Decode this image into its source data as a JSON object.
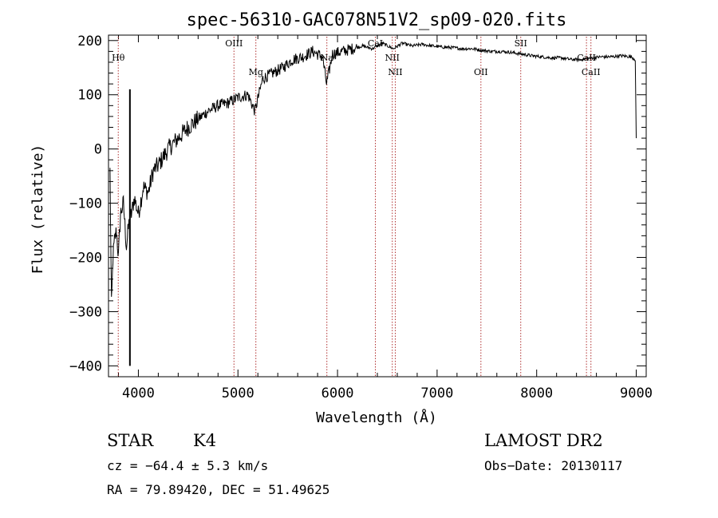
{
  "chart_data": {
    "type": "line",
    "title": "spec-56310-GAC078N51V2_sp09-020.fits",
    "xlabel": "Wavelength (Å)",
    "ylabel": "Flux (relative)",
    "xlim": [
      3700,
      9100
    ],
    "ylim": [
      -420,
      210
    ],
    "xticks": [
      4000,
      5000,
      6000,
      7000,
      8000,
      9000
    ],
    "xtick_labels": [
      "4000",
      "5000",
      "6000",
      "7000",
      "8000",
      "9000"
    ],
    "yticks": [
      -400,
      -300,
      -200,
      -100,
      0,
      100,
      200
    ],
    "ytick_labels": [
      "−400",
      "−300",
      "−200",
      "−100",
      "0",
      "100",
      "200"
    ],
    "grid": false,
    "line_color": "#000000",
    "marker_color": "#b03030",
    "series": [
      {
        "x": [
          3715,
          3730,
          3745,
          3760,
          3780,
          3800,
          3820,
          3850,
          3880,
          3910,
          3930,
          3960,
          4000,
          4050,
          4100,
          4150,
          4200,
          4300,
          4400,
          4500,
          4600,
          4700,
          4800,
          4900,
          5000,
          5100,
          5170,
          5250,
          5350,
          5450,
          5550,
          5650,
          5750,
          5850,
          5890,
          5950,
          6050,
          6150,
          6250,
          6350,
          6450,
          6560,
          6650,
          6750,
          6850,
          6950,
          7050,
          7150,
          7250,
          7350,
          7450,
          7550,
          7650,
          7750,
          7850,
          7950,
          8050,
          8150,
          8250,
          8350,
          8450,
          8550,
          8650,
          8750,
          8850,
          8950,
          8990,
          9000
        ],
        "y": [
          -40,
          -290,
          -200,
          -170,
          -150,
          -200,
          -120,
          -100,
          -180,
          -130,
          -120,
          -90,
          -120,
          -70,
          -80,
          -40,
          -30,
          0,
          20,
          40,
          55,
          70,
          80,
          85,
          95,
          100,
          70,
          130,
          140,
          150,
          165,
          170,
          180,
          170,
          120,
          175,
          180,
          185,
          190,
          185,
          195,
          185,
          195,
          190,
          193,
          190,
          188,
          187,
          185,
          185,
          182,
          180,
          180,
          178,
          175,
          172,
          170,
          168,
          168,
          165,
          165,
          168,
          170,
          170,
          172,
          170,
          165,
          20
        ]
      }
    ],
    "spikes": [
      {
        "x": 3915,
        "y_from": -400,
        "y_to": 110
      }
    ],
    "line_markers": [
      {
        "x": 3798,
        "label": "Hθ",
        "row": 1
      },
      {
        "x": 4960,
        "label": "OIII",
        "row": 0
      },
      {
        "x": 5180,
        "label": "Mg",
        "row": 2
      },
      {
        "x": 5893,
        "label": "Na",
        "row": 1
      },
      {
        "x": 6380,
        "label": "CaI",
        "row": 0
      },
      {
        "x": 6550,
        "label": "NII",
        "row": 1
      },
      {
        "x": 6580,
        "label": "NII",
        "row": 2
      },
      {
        "x": 7440,
        "label": "OII",
        "row": 2
      },
      {
        "x": 7840,
        "label": "SII",
        "row": 0
      },
      {
        "x": 8500,
        "label": "CaII",
        "row": 1
      },
      {
        "x": 8545,
        "label": "CaII",
        "row": 2
      }
    ]
  },
  "info": {
    "object_type": "STAR",
    "subclass": "K4",
    "survey": "LAMOST DR2",
    "cz": "cz = −64.4 ± 5.3 km/s",
    "obs_date": "Obs−Date: 20130117",
    "coords": "RA =  79.89420, DEC =  51.49625"
  }
}
